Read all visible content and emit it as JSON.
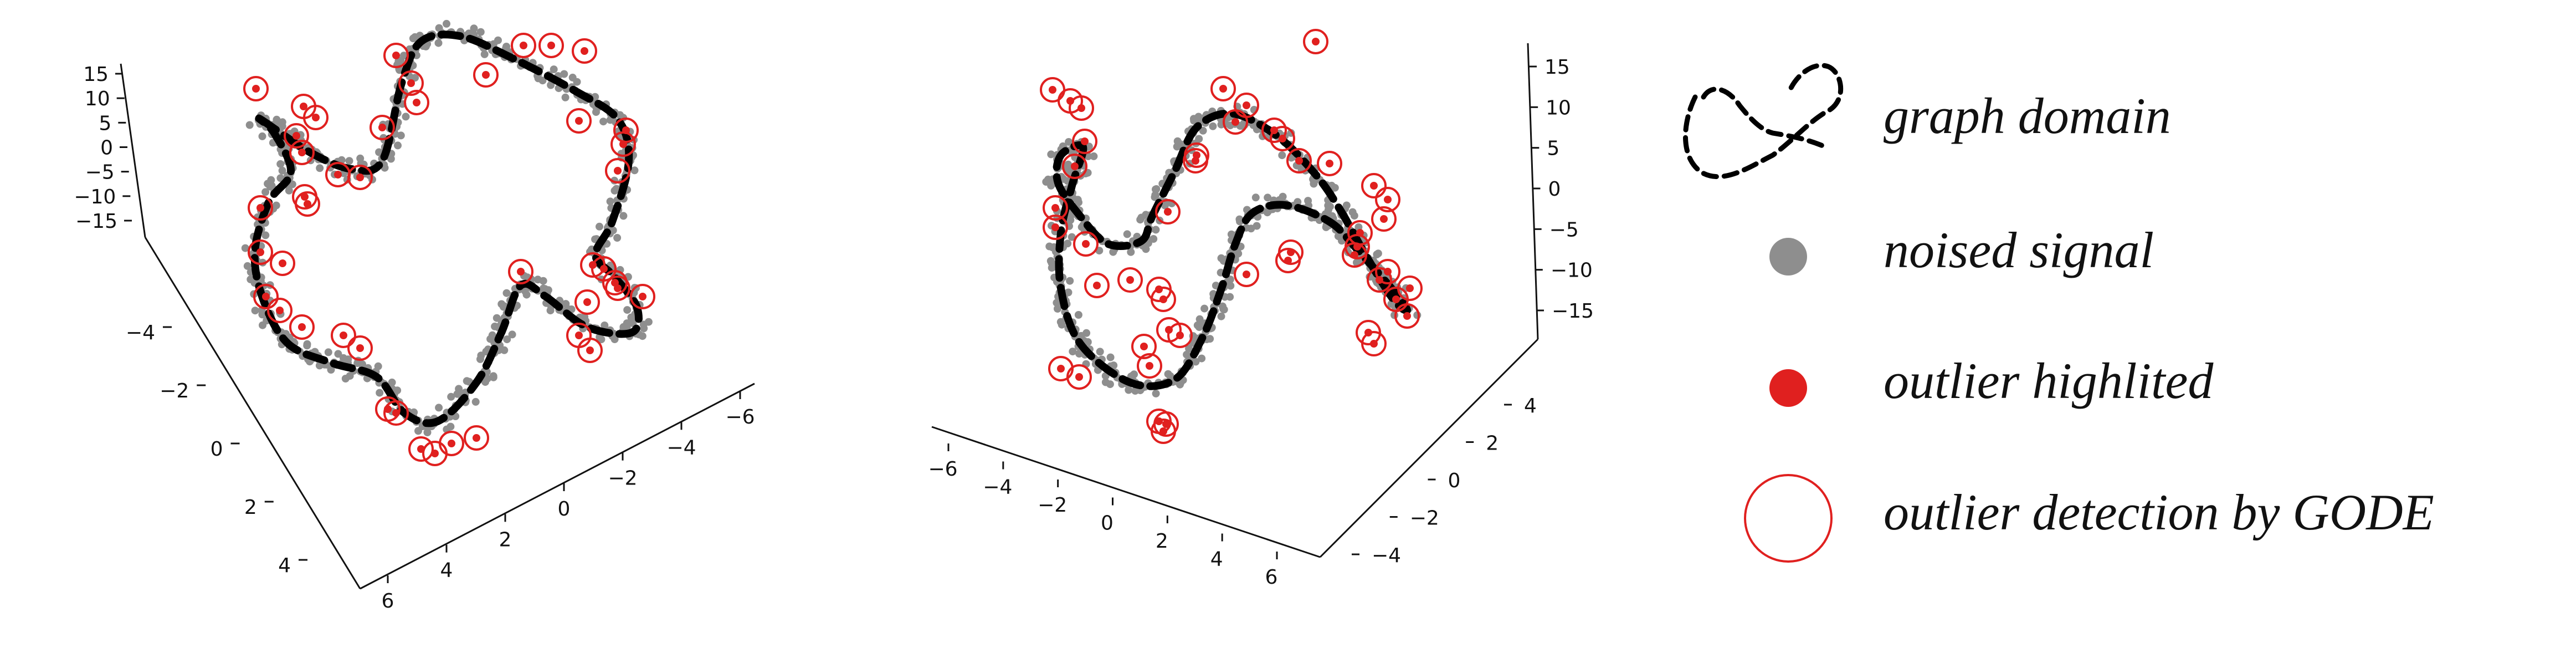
{
  "chart_data": [
    {
      "type": "scatter",
      "projection": "3d",
      "description_of_marks": "noised signal points along a closed knotted graph curve, outliers marked in red and circled",
      "z_axis": {
        "ticks": [
          "15",
          "10",
          "5",
          "0",
          "−5",
          "−10",
          "−15"
        ]
      },
      "y_axis": {
        "ticks": [
          "−4",
          "−2",
          "0",
          "2",
          "4"
        ]
      },
      "x_axis": {
        "ticks": [
          "6",
          "4",
          "2",
          "0",
          "−2",
          "−4",
          "−6"
        ]
      },
      "grid": false
    },
    {
      "type": "scatter",
      "projection": "3d",
      "description_of_marks": "noised signal points along a closed knotted graph curve, outliers marked in red and circled",
      "z_axis": {
        "ticks": [
          "15",
          "10",
          "5",
          "0",
          "−5",
          "−10",
          "−15"
        ]
      },
      "x_axis": {
        "ticks": [
          "−6",
          "−4",
          "−2",
          "0",
          "2",
          "4",
          "6"
        ]
      },
      "y_axis": {
        "ticks": [
          "4",
          "2",
          "0",
          "−2",
          "−4"
        ]
      },
      "grid": false
    }
  ],
  "legend": {
    "items": [
      {
        "label": "graph domain",
        "icon": "dashed-knot-icon"
      },
      {
        "label": "noised signal",
        "icon": "gray-dot-icon"
      },
      {
        "label": "outlier highlited",
        "icon": "red-dot-icon"
      },
      {
        "label": "outlier detection by GODE",
        "icon": "red-ring-icon"
      }
    ]
  },
  "colors": {
    "signal": "#8e8e8e",
    "outlier": "#e0201f",
    "curve": "#000000"
  }
}
